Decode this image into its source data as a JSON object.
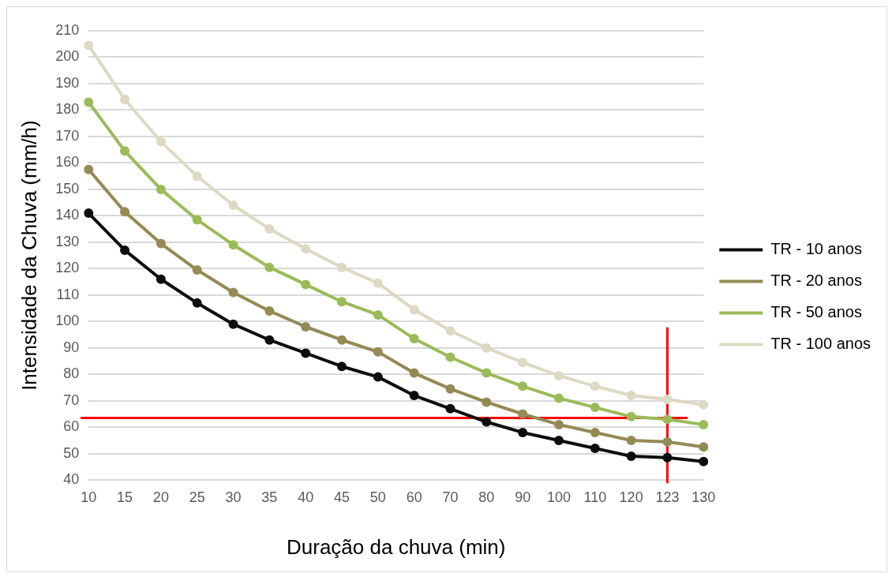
{
  "chart_data": {
    "type": "line",
    "xlabel": "Duração da chuva (min)",
    "ylabel": "Intensidade da Chuva (mm/h)",
    "categories": [
      "10",
      "15",
      "20",
      "25",
      "30",
      "35",
      "40",
      "45",
      "50",
      "60",
      "70",
      "80",
      "90",
      "100",
      "110",
      "120",
      "123",
      "130"
    ],
    "series": [
      {
        "name": "TR - 10 anos",
        "color": "#0d0d0d",
        "values": [
          141,
          127,
          116,
          107,
          99,
          93,
          88,
          83,
          79,
          72,
          67,
          62,
          58,
          55,
          52,
          49,
          48.5,
          47
        ]
      },
      {
        "name": "TR - 20 anos",
        "color": "#948a54",
        "values": [
          157.5,
          141.5,
          129.5,
          119.5,
          111,
          104,
          98,
          93,
          88.5,
          80.5,
          74.5,
          69.5,
          65,
          61,
          58,
          55,
          54.5,
          52.5
        ]
      },
      {
        "name": "TR - 50 anos",
        "color": "#9bbb59",
        "values": [
          183,
          164.5,
          150,
          138.5,
          129,
          120.5,
          114,
          107.5,
          102.5,
          93.5,
          86.5,
          80.5,
          75.5,
          71,
          67.5,
          64,
          63,
          61
        ]
      },
      {
        "name": "TR - 100 anos",
        "color": "#ddd9c3",
        "values": [
          204.5,
          184,
          168,
          155,
          144,
          135,
          127.5,
          120.5,
          114.5,
          104.5,
          96.5,
          90,
          84.5,
          79.5,
          75.5,
          72,
          70.5,
          68.5
        ]
      }
    ],
    "ylim": [
      40,
      210
    ],
    "yticks": [
      40,
      50,
      60,
      70,
      80,
      90,
      100,
      110,
      120,
      130,
      140,
      150,
      160,
      170,
      180,
      190,
      200,
      210
    ],
    "ref_lines": [
      {
        "axis": "y",
        "value": 63.5,
        "color": "#ff0000"
      },
      {
        "axis": "x",
        "value": "123",
        "color": "#ff0000"
      }
    ],
    "grid": "y",
    "legend": "right",
    "marker": "circle",
    "line_style": "solid"
  }
}
